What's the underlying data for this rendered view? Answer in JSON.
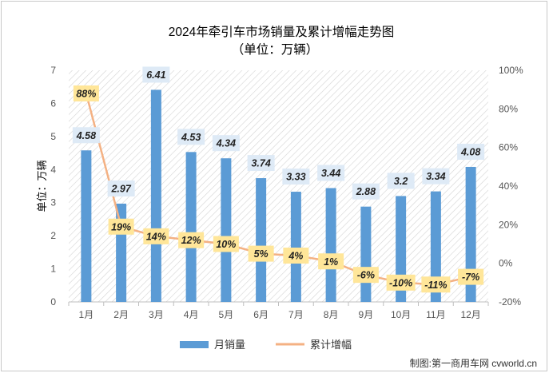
{
  "chart_data": {
    "type": "bar",
    "title": "2024年牵引车市场销量及累计增幅走势图",
    "subtitle": "（单位：万辆）",
    "ylabel": "单位：万辆",
    "categories": [
      "1月",
      "2月",
      "3月",
      "4月",
      "5月",
      "6月",
      "7月",
      "8月",
      "9月",
      "10月",
      "11月",
      "12月"
    ],
    "ylim": [
      0,
      7
    ],
    "yticks": [
      0,
      1,
      2,
      3,
      4,
      5,
      6,
      7
    ],
    "y2lim": [
      -20,
      100
    ],
    "y2ticks": [
      "-20%",
      "0%",
      "20%",
      "40%",
      "60%",
      "80%",
      "100%"
    ],
    "series": [
      {
        "name": "月销量",
        "type": "bar",
        "axis": "left",
        "color": "#5b9bd5",
        "values": [
          4.58,
          2.97,
          6.41,
          4.53,
          4.34,
          3.74,
          3.33,
          3.44,
          2.88,
          3.2,
          3.34,
          4.08
        ],
        "labels": [
          "4.58",
          "2.97",
          "6.41",
          "4.53",
          "4.34",
          "3.74",
          "3.33",
          "3.44",
          "2.88",
          "3.2",
          "3.34",
          "4.08"
        ]
      },
      {
        "name": "累计增幅",
        "type": "line",
        "axis": "right",
        "color": "#f4b183",
        "values": [
          88,
          19,
          14,
          12,
          10,
          5,
          4,
          1,
          -6,
          -10,
          -11,
          -7
        ],
        "labels": [
          "88%",
          "19%",
          "14%",
          "12%",
          "10%",
          "5%",
          "4%",
          "1%",
          "-6%",
          "-10%",
          "-11%",
          "-7%"
        ]
      }
    ],
    "legend_position": "bottom",
    "grid": false,
    "source_note": "制图:第一商用车网 cvworld.cn"
  }
}
